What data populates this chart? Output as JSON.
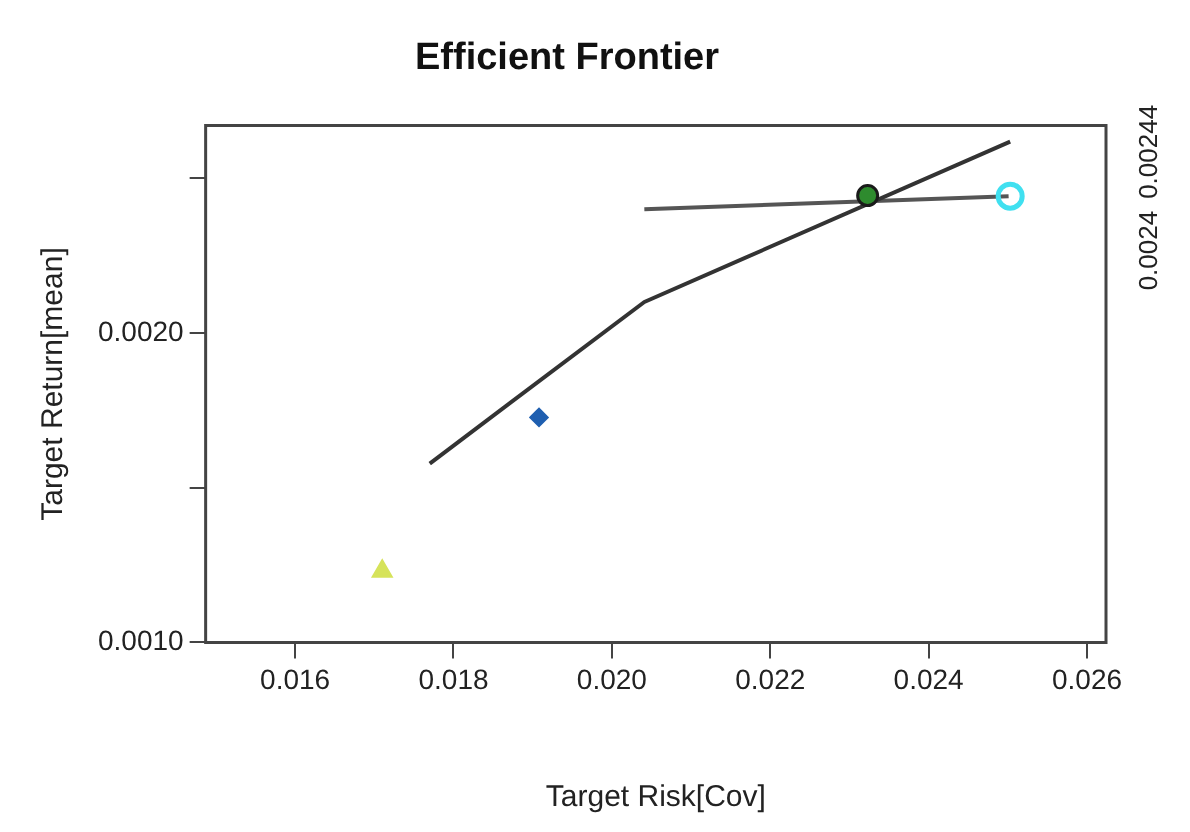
{
  "chart_data": {
    "type": "line",
    "title": "Efficient Frontier",
    "xlabel": "Target Risk[Cov]",
    "ylabel": "Target Return[mean]",
    "xlim": [
      0.01487,
      0.02624
    ],
    "xticks": [
      0.016,
      0.018,
      {
        "value": 0.02,
        "label": "0.020"
      },
      0.022,
      0.024,
      0.026
    ],
    "ylim": [
      0.001,
      0.00267
    ],
    "yticks": [
      {
        "value": 0.001,
        "label": "0.0010"
      },
      {
        "value": 0.0015,
        "label": null
      },
      {
        "value": 0.002,
        "label": "0.0020"
      },
      {
        "value": 0.0025,
        "label": null
      }
    ],
    "annotations": [
      "0.0024",
      "0.00244"
    ],
    "grid": false,
    "legend": false,
    "series": [
      {
        "color": "#333333",
        "marker": "none",
        "x": [
          0.0177,
          0.02041,
          0.02503
        ],
        "values": [
          0.001578,
          0.0021,
          0.002618
        ]
      },
      {
        "color": "#555555",
        "marker": "none",
        "x": [
          0.02041,
          0.02501
        ],
        "values": [
          0.0024,
          0.002442
        ]
      },
      {
        "type": "scatter",
        "color": "#d6e35a",
        "marker": "triangle",
        "x": [
          0.0171
        ],
        "values": [
          0.00123
        ]
      },
      {
        "type": "scatter",
        "color": "#1f5fb0",
        "marker": "diamond",
        "x": [
          0.01908
        ],
        "values": [
          0.001727
        ]
      },
      {
        "type": "scatter",
        "color": "#2e8b2e",
        "marker": "circle",
        "x": [
          0.02323
        ],
        "values": [
          0.002444
        ]
      },
      {
        "type": "scatter",
        "color": "#40e0f0",
        "marker": "open circle",
        "x": [
          0.02503
        ],
        "values": [
          0.002442
        ]
      }
    ]
  }
}
